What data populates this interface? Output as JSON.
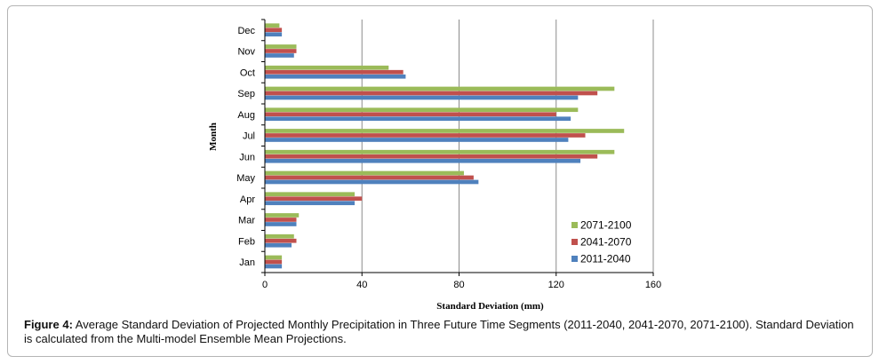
{
  "chart_data": {
    "type": "bar",
    "orientation": "horizontal",
    "categories": [
      "Jan",
      "Feb",
      "Mar",
      "Apr",
      "May",
      "Jun",
      "Jul",
      "Aug",
      "Sep",
      "Oct",
      "Nov",
      "Dec"
    ],
    "series": [
      {
        "name": "2011-2040",
        "color": "#4f81bd",
        "values": [
          7,
          11,
          13,
          37,
          88,
          130,
          125,
          126,
          129,
          58,
          12,
          7
        ]
      },
      {
        "name": "2041-2070",
        "color": "#c0504d",
        "values": [
          7,
          13,
          13,
          40,
          86,
          137,
          132,
          120,
          137,
          57,
          13,
          7
        ]
      },
      {
        "name": "2071-2100",
        "color": "#9bbb59",
        "values": [
          7,
          12,
          14,
          37,
          82,
          144,
          148,
          129,
          144,
          51,
          13,
          6
        ]
      }
    ],
    "xlabel": "Standard Deviation (mm)",
    "ylabel": "Month",
    "xlim": [
      0,
      160
    ],
    "xticks": [
      0,
      40,
      80,
      120,
      160
    ],
    "grid": "vertical",
    "legend_position": "bottom-right"
  },
  "caption": {
    "label": "Figure 4:",
    "text": " Average Standard Deviation of Projected Monthly Precipitation in Three Future Time Segments (2011-2040, 2041-2070, 2071-2100). Standard Deviation is calculated from the Multi-model Ensemble Mean Projections."
  }
}
